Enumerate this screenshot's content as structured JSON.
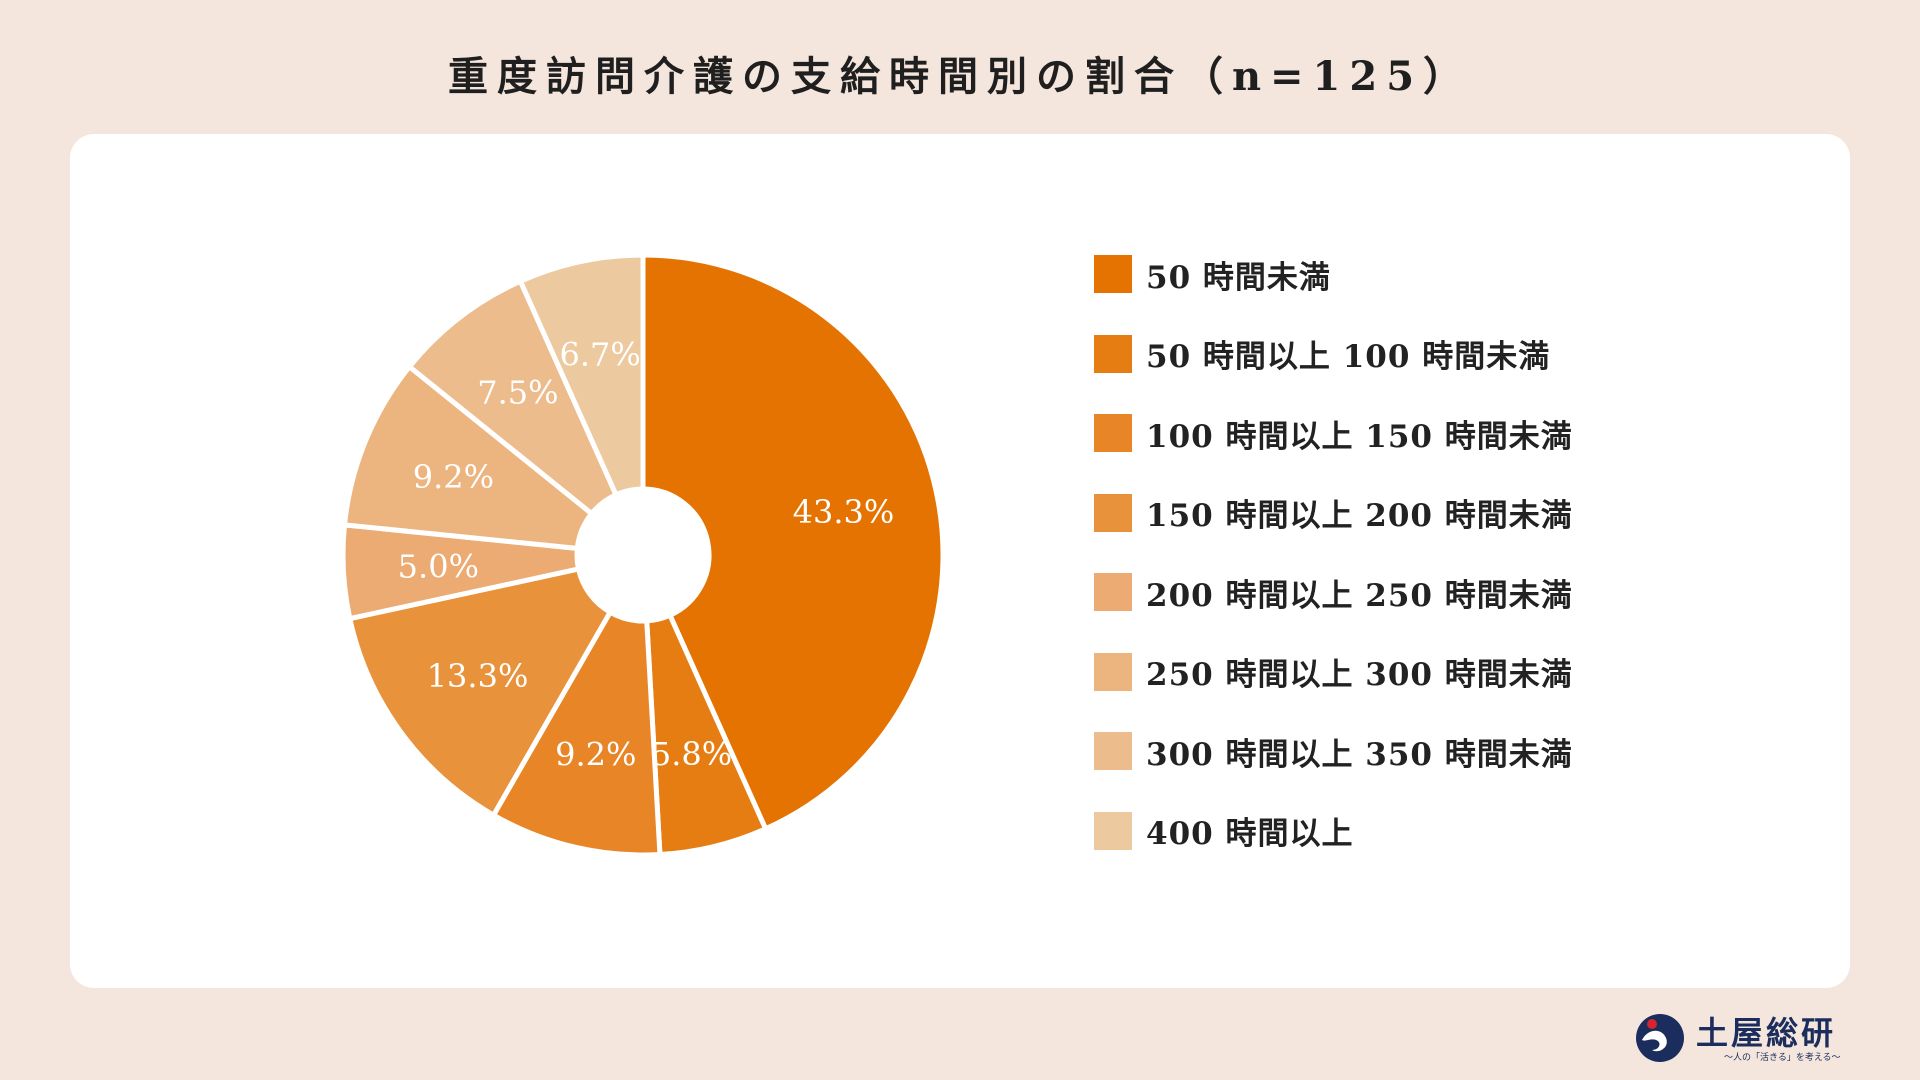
{
  "title": "重度訪問介護の支給時間別の割合（n=125）",
  "chart_data": {
    "type": "pie",
    "title": "重度訪問介護の支給時間別の割合（n=125）",
    "donut": true,
    "start_angle_deg": 0,
    "direction": "clockwise",
    "legend_position": "right",
    "slices": [
      {
        "label": "50 時間未満",
        "value": 43.3,
        "value_label": "43.3%",
        "color": "#e57302"
      },
      {
        "label": "50 時間以上 100 時間未満",
        "value": 5.8,
        "value_label": "5.8%",
        "color": "#e67d13"
      },
      {
        "label": "100 時間以上 150 時間未満",
        "value": 9.2,
        "value_label": "9.2%",
        "color": "#e88526"
      },
      {
        "label": "150 時間以上 200 時間未満",
        "value": 13.3,
        "value_label": "13.3%",
        "color": "#e9923c"
      },
      {
        "label": "200 時間以上 250 時間未満",
        "value": 5.0,
        "value_label": "5.0%",
        "color": "#ebab72"
      },
      {
        "label": "250 時間以上 300 時間未満",
        "value": 9.2,
        "value_label": "9.2%",
        "color": "#ecb57f"
      },
      {
        "label": "300 時間以上 350 時間未満",
        "value": 7.5,
        "value_label": "7.5%",
        "color": "#ecbc8c"
      },
      {
        "label": "400 時間以上",
        "value": 6.7,
        "value_label": "6.7%",
        "color": "#edc9a0"
      }
    ]
  },
  "logo": {
    "name": "土屋総研",
    "tagline": "〜人の「活きる」を考える〜",
    "icon": "tsuchiya-logo-icon"
  }
}
